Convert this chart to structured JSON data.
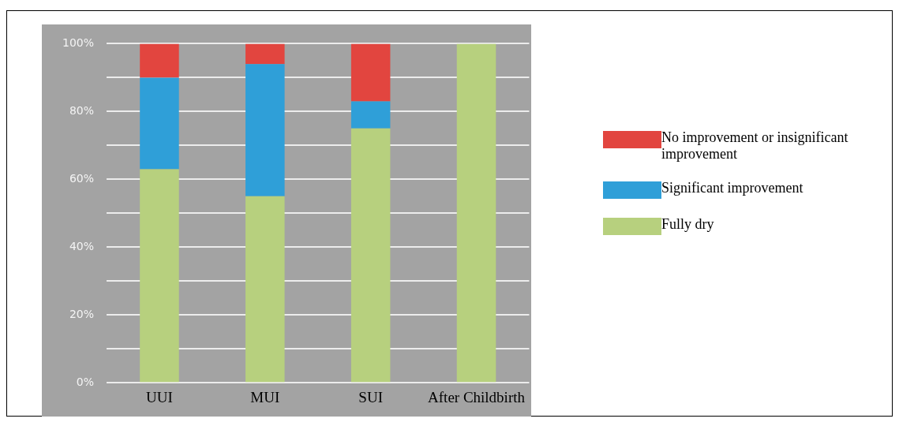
{
  "chart_data": {
    "type": "bar",
    "stacked": true,
    "categories": [
      "UUI",
      "MUI",
      "SUI",
      "After Childbirth"
    ],
    "series": [
      {
        "name": "Fully dry",
        "color": "#b7d07e",
        "values": [
          63,
          55,
          75,
          100
        ]
      },
      {
        "name": "Significant improvement",
        "color": "#2f9fd8",
        "values": [
          27,
          39,
          8,
          0
        ]
      },
      {
        "name": "No improvement or insignificant improvement",
        "color": "#e2453f",
        "values": [
          10,
          6,
          17,
          0
        ]
      }
    ],
    "ylim": [
      0,
      100
    ],
    "yticks": [
      {
        "value": 0,
        "label": "0%"
      },
      {
        "value": 10,
        "label": null
      },
      {
        "value": 20,
        "label": "20%"
      },
      {
        "value": 30,
        "label": null
      },
      {
        "value": 40,
        "label": "40%"
      },
      {
        "value": 50,
        "label": null
      },
      {
        "value": 60,
        "label": "60%"
      },
      {
        "value": 70,
        "label": null
      },
      {
        "value": 80,
        "label": "80%"
      },
      {
        "value": 90,
        "label": null
      },
      {
        "value": 100,
        "label": "100%"
      }
    ],
    "grid": "y",
    "legend": "right"
  }
}
